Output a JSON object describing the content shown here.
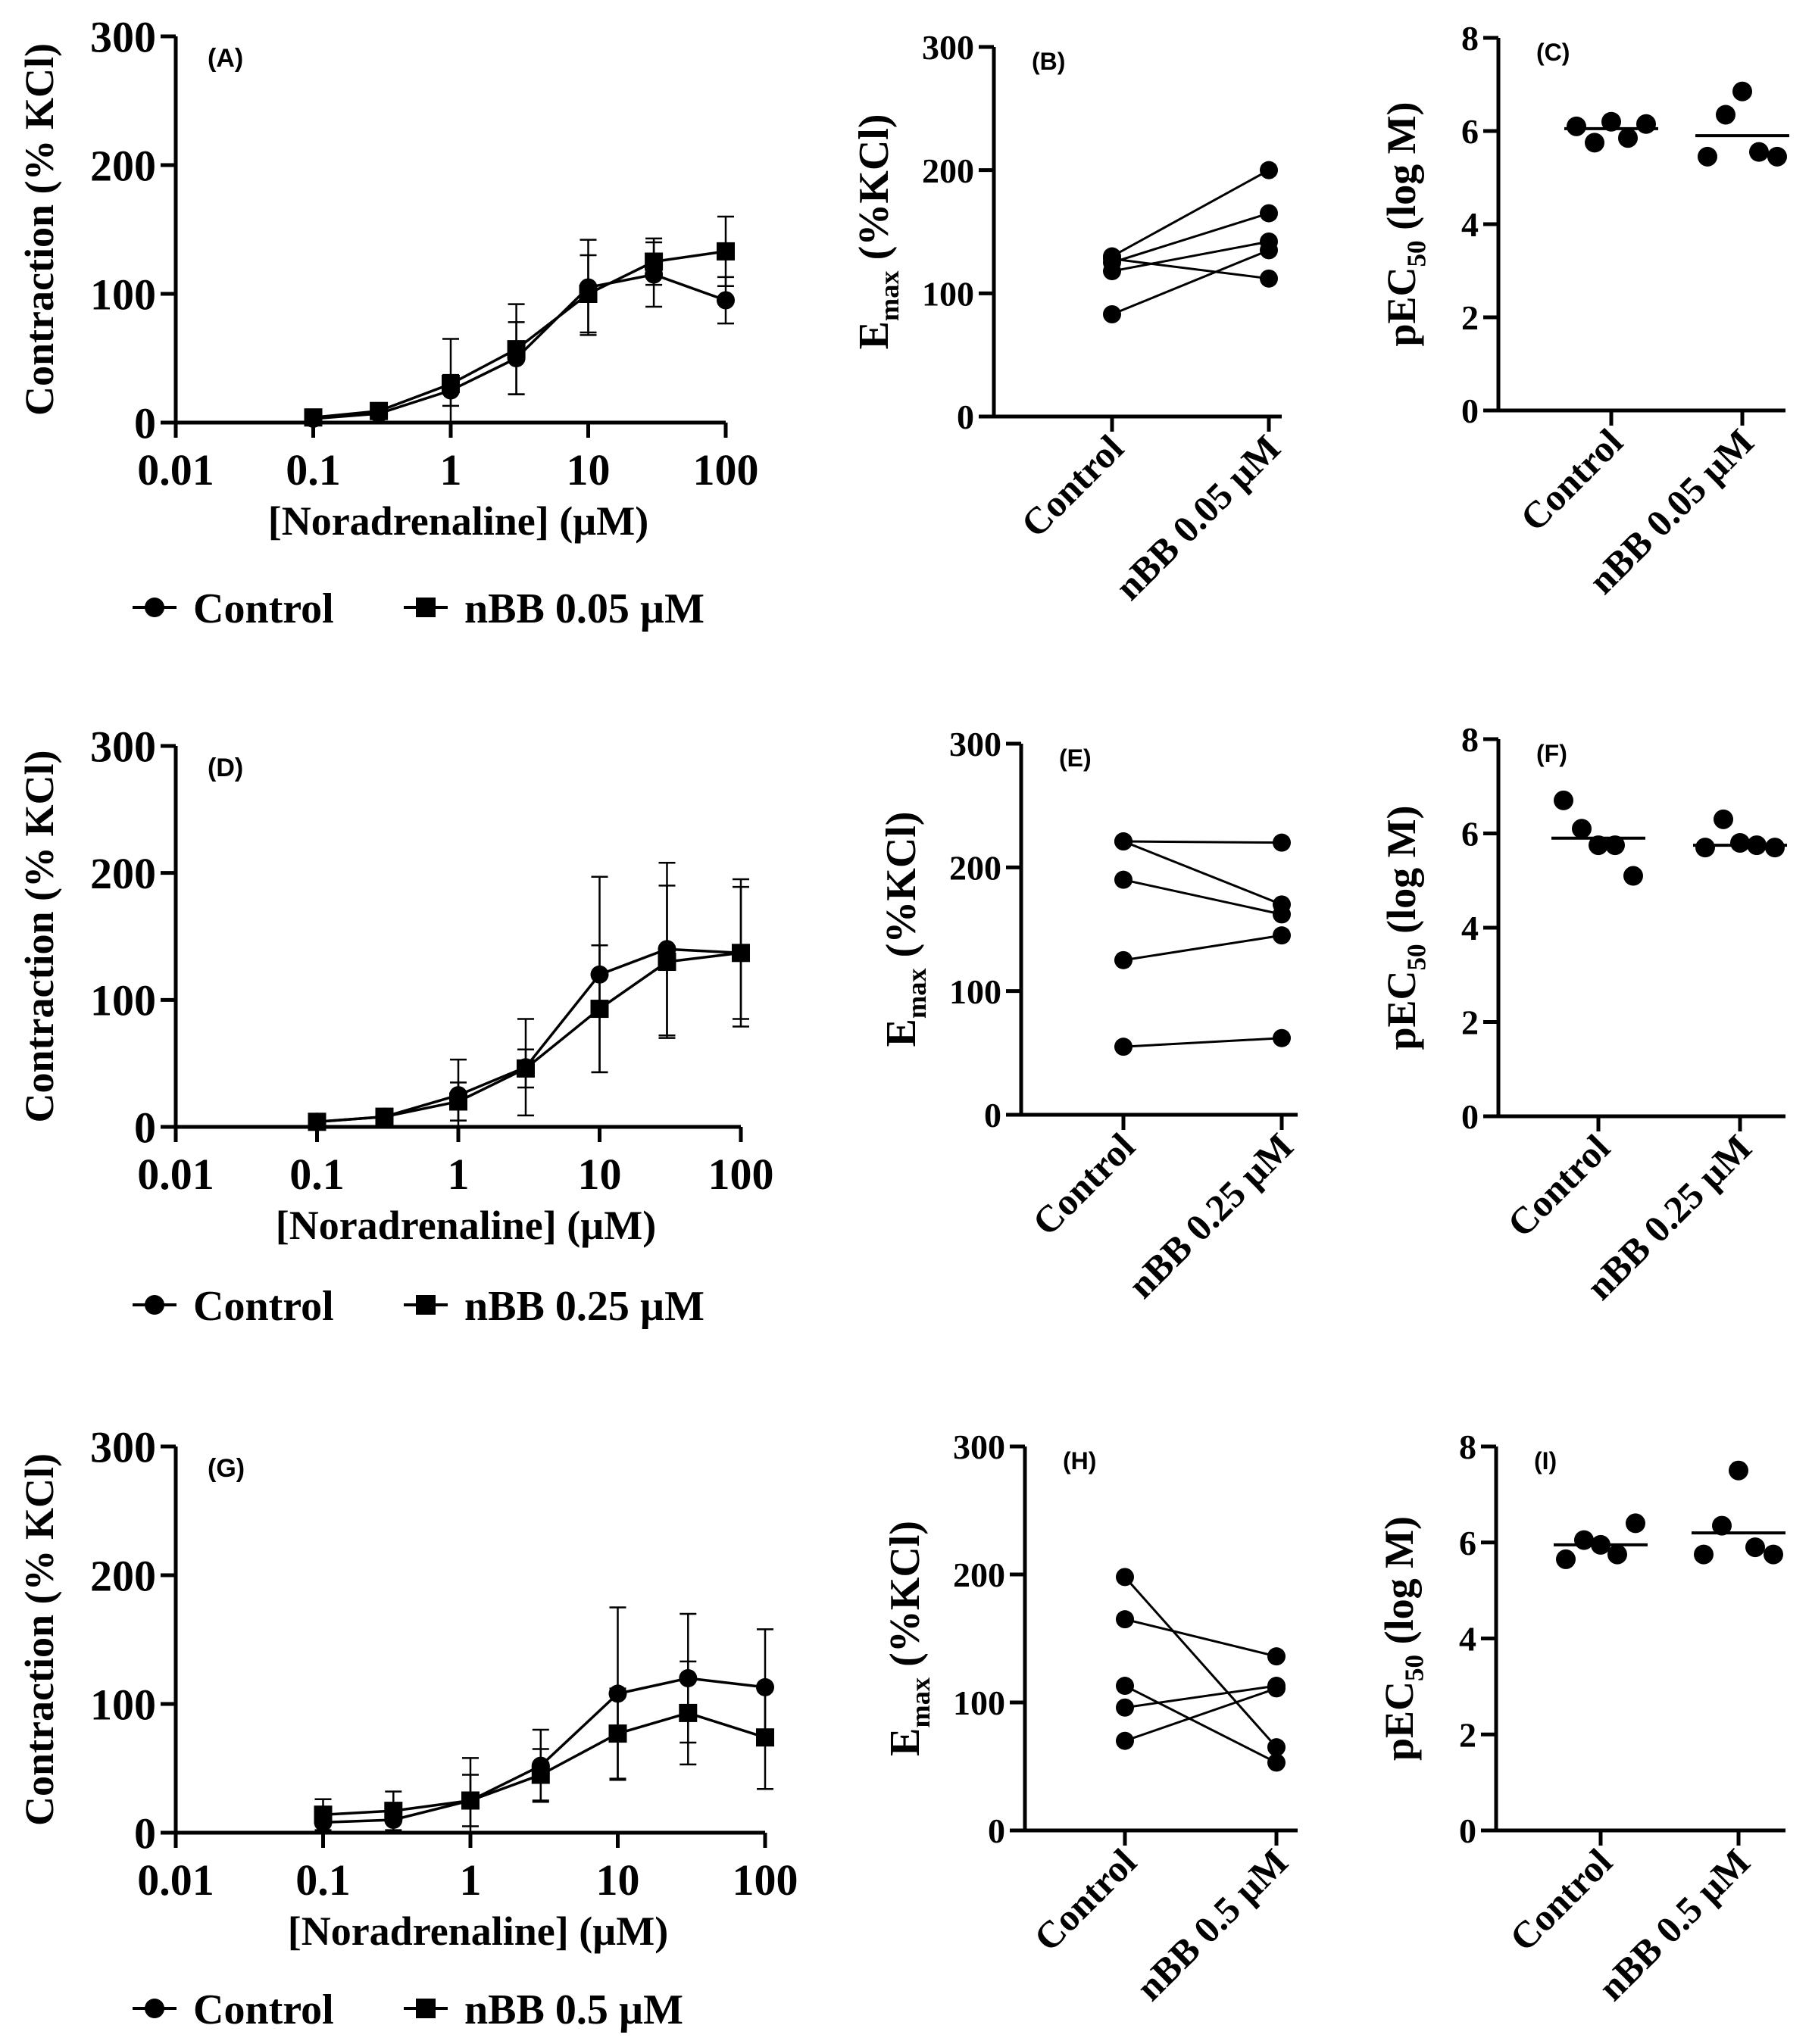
{
  "chart_data": [
    {
      "id": "A",
      "type": "line",
      "panel_label": "(A)",
      "ylabel": "Contraction (% KCl)",
      "xlabel": "[Noradrenaline] (µM)",
      "xscale": "log",
      "xlim": [
        0.01,
        100
      ],
      "ylim": [
        0,
        300
      ],
      "yticks": [
        "0",
        "100",
        "200",
        "300"
      ],
      "xticks": [
        "0.01",
        "0.1",
        "1",
        "10",
        "100"
      ],
      "x": [
        0.1,
        0.3,
        1,
        3,
        10,
        30,
        100
      ],
      "series": [
        {
          "name": "Control",
          "marker": "circle",
          "values": [
            3,
            7,
            25,
            50,
            105,
            115,
            95
          ],
          "errors": [
            2,
            4,
            12,
            28,
            37,
            25,
            18
          ]
        },
        {
          "name": "nBB 0.05 µM",
          "marker": "square",
          "values": [
            4,
            9,
            30,
            57,
            100,
            125,
            133
          ],
          "errors": [
            2,
            5,
            35,
            35,
            30,
            18,
            27
          ]
        }
      ],
      "legend": [
        "Control",
        "nBB 0.05 µM"
      ]
    },
    {
      "id": "B",
      "type": "paired",
      "panel_label": "(B)",
      "ylabel": "Emax (%KCl)",
      "ylim": [
        0,
        300
      ],
      "yticks": [
        "0",
        "100",
        "200",
        "300"
      ],
      "categories": [
        "Control",
        "nBB 0.05 µM"
      ],
      "pairs": [
        [
          130,
          200
        ],
        [
          125,
          165
        ],
        [
          118,
          142
        ],
        [
          128,
          112
        ],
        [
          83,
          135
        ]
      ]
    },
    {
      "id": "C",
      "type": "scatter",
      "panel_label": "(C)",
      "ylabel": "pEC50 (log M)",
      "ylim": [
        0,
        8
      ],
      "yticks": [
        "0",
        "2",
        "4",
        "6",
        "8"
      ],
      "categories": [
        "Control",
        "nBB 0.05 µM"
      ],
      "groups": [
        [
          6.1,
          5.75,
          6.2,
          5.85,
          6.15
        ],
        [
          5.45,
          6.35,
          6.85,
          5.55,
          5.45
        ]
      ],
      "means": [
        6.05,
        5.9
      ]
    },
    {
      "id": "D",
      "type": "line",
      "panel_label": "(D)",
      "ylabel": "Contraction (% KCl)",
      "xlabel": "[Noradrenaline] (µM)",
      "xscale": "log",
      "xlim": [
        0.01,
        100
      ],
      "ylim": [
        0,
        300
      ],
      "yticks": [
        "0",
        "100",
        "200",
        "300"
      ],
      "xticks": [
        "0.01",
        "0.1",
        "1",
        "10",
        "100"
      ],
      "x": [
        0.1,
        0.3,
        1,
        3,
        10,
        30,
        100
      ],
      "series": [
        {
          "name": "Control",
          "marker": "circle",
          "values": [
            4,
            8,
            25,
            47,
            120,
            140,
            137
          ],
          "errors": [
            2,
            5,
            28,
            38,
            77,
            68,
            58
          ]
        },
        {
          "name": "nBB 0.25 µM",
          "marker": "square",
          "values": [
            4,
            8,
            20,
            46,
            93,
            130,
            137
          ],
          "errors": [
            2,
            5,
            15,
            15,
            50,
            60,
            52
          ]
        }
      ],
      "legend": [
        "Control",
        "nBB 0.25 µM"
      ]
    },
    {
      "id": "E",
      "type": "paired",
      "panel_label": "(E)",
      "ylabel": "Emax (%KCl)",
      "ylim": [
        0,
        300
      ],
      "yticks": [
        "0",
        "100",
        "200",
        "300"
      ],
      "categories": [
        "Control",
        "nBB 0.25 µM"
      ],
      "pairs": [
        [
          221,
          220
        ],
        [
          190,
          162
        ],
        [
          221,
          170
        ],
        [
          125,
          145
        ],
        [
          55,
          62
        ]
      ]
    },
    {
      "id": "F",
      "type": "scatter",
      "panel_label": "(F)",
      "ylabel": "pEC50 (log M)",
      "ylim": [
        0,
        8
      ],
      "yticks": [
        "0",
        "2",
        "4",
        "6",
        "8"
      ],
      "categories": [
        "Control",
        "nBB 0.25 µM"
      ],
      "groups": [
        [
          6.7,
          6.1,
          5.75,
          5.75,
          5.1
        ],
        [
          5.7,
          6.3,
          5.8,
          5.75,
          5.7
        ]
      ],
      "means": [
        5.9,
        5.75
      ]
    },
    {
      "id": "G",
      "type": "line",
      "panel_label": "(G)",
      "ylabel": "Contraction (% KCl)",
      "xlabel": "[Noradrenaline] (µM)",
      "xscale": "log",
      "xlim": [
        0.01,
        100
      ],
      "ylim": [
        0,
        300
      ],
      "yticks": [
        "0",
        "100",
        "200",
        "300"
      ],
      "xticks": [
        "0.01",
        "0.1",
        "1",
        "10",
        "100"
      ],
      "x": [
        0.1,
        0.3,
        1,
        3,
        10,
        30,
        100
      ],
      "series": [
        {
          "name": "Control",
          "marker": "circle",
          "values": [
            8,
            10,
            25,
            52,
            108,
            120,
            113
          ],
          "errors": [
            8,
            12,
            33,
            28,
            67,
            50,
            45
          ]
        },
        {
          "name": "nBB 0.5 µM",
          "marker": "square",
          "values": [
            14,
            17,
            25,
            45,
            77,
            93,
            74
          ],
          "errors": [
            12,
            15,
            20,
            20,
            35,
            40,
            40
          ]
        }
      ],
      "legend": [
        "Control",
        "nBB 0.5 µM"
      ]
    },
    {
      "id": "H",
      "type": "paired",
      "panel_label": "(H)",
      "ylabel": "Emax (%KCl)",
      "ylim": [
        0,
        300
      ],
      "yticks": [
        "0",
        "100",
        "200",
        "300"
      ],
      "categories": [
        "Control",
        "nBB 0.5 µM"
      ],
      "pairs": [
        [
          198,
          65
        ],
        [
          165,
          136
        ],
        [
          113,
          53
        ],
        [
          96,
          113
        ],
        [
          70,
          111
        ]
      ]
    },
    {
      "id": "I",
      "type": "scatter",
      "panel_label": "(I)",
      "ylabel": "pEC50 (log M)",
      "ylim": [
        0,
        8
      ],
      "yticks": [
        "0",
        "2",
        "4",
        "6",
        "8"
      ],
      "categories": [
        "Control",
        "nBB 0.5 µM"
      ],
      "groups": [
        [
          5.65,
          6.05,
          5.95,
          5.75,
          6.4
        ],
        [
          5.75,
          6.35,
          7.5,
          5.9,
          5.75
        ]
      ],
      "means": [
        5.95,
        6.2
      ]
    }
  ]
}
